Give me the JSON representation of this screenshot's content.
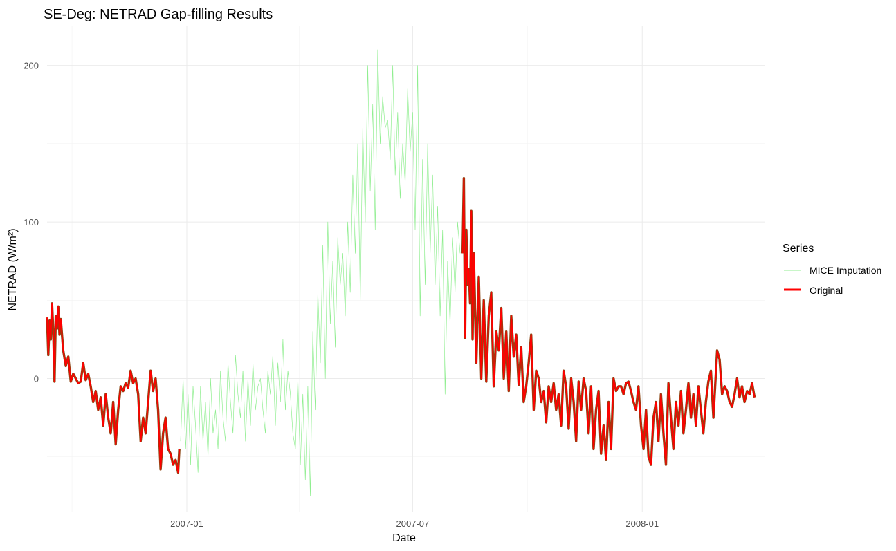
{
  "chart_data": {
    "type": "line",
    "title": "SE-Deg: NETRAD Gap-filling Results",
    "xlabel": "Date",
    "ylabel": "NETRAD (W/m²)",
    "x_range": [
      "2006-09-11",
      "2008-04-08"
    ],
    "ylim": [
      -85,
      225
    ],
    "x_ticks": [
      {
        "date": "2007-01-01",
        "label": "2007-01"
      },
      {
        "date": "2007-07-01",
        "label": "2007-07"
      },
      {
        "date": "2008-01-01",
        "label": "2008-01"
      }
    ],
    "x_minor_ticks": [
      "2006-10-01",
      "2007-04-01",
      "2007-10-01",
      "2008-04-01"
    ],
    "y_ticks": [
      0,
      100,
      200
    ],
    "y_minor_ticks": [
      -50,
      50,
      150
    ],
    "grid": true,
    "legend": {
      "title": "Series",
      "position": "right",
      "entries": [
        {
          "label": "MICE Imputation",
          "color": "#90EE90"
        },
        {
          "label": "Original",
          "color": "#FF0000"
        }
      ]
    },
    "series": [
      {
        "name": "MICE Imputation",
        "color": "#90EE90",
        "x": [
          "2006-12-27",
          "2006-12-29",
          "2006-12-31",
          "2007-01-02",
          "2007-01-04",
          "2007-01-06",
          "2007-01-08",
          "2007-01-10",
          "2007-01-12",
          "2007-01-14",
          "2007-01-16",
          "2007-01-18",
          "2007-01-20",
          "2007-01-22",
          "2007-01-24",
          "2007-01-26",
          "2007-01-28",
          "2007-01-30",
          "2007-02-01",
          "2007-02-03",
          "2007-02-05",
          "2007-02-07",
          "2007-02-09",
          "2007-02-11",
          "2007-02-13",
          "2007-02-15",
          "2007-02-17",
          "2007-02-19",
          "2007-02-21",
          "2007-02-23",
          "2007-02-25",
          "2007-02-27",
          "2007-03-01",
          "2007-03-03",
          "2007-03-05",
          "2007-03-07",
          "2007-03-09",
          "2007-03-11",
          "2007-03-13",
          "2007-03-15",
          "2007-03-17",
          "2007-03-19",
          "2007-03-21",
          "2007-03-23",
          "2007-03-25",
          "2007-03-27",
          "2007-03-29",
          "2007-03-31",
          "2007-04-02",
          "2007-04-04",
          "2007-04-06",
          "2007-04-08",
          "2007-04-10",
          "2007-04-12",
          "2007-04-14",
          "2007-04-16",
          "2007-04-18",
          "2007-04-20",
          "2007-04-22",
          "2007-04-24",
          "2007-04-26",
          "2007-04-28",
          "2007-04-30",
          "2007-05-02",
          "2007-05-04",
          "2007-05-06",
          "2007-05-08",
          "2007-05-10",
          "2007-05-12",
          "2007-05-14",
          "2007-05-16",
          "2007-05-18",
          "2007-05-20",
          "2007-05-22",
          "2007-05-24",
          "2007-05-26",
          "2007-05-28",
          "2007-05-30",
          "2007-06-01",
          "2007-06-03",
          "2007-06-05",
          "2007-06-07",
          "2007-06-09",
          "2007-06-11",
          "2007-06-13",
          "2007-06-15",
          "2007-06-17",
          "2007-06-19",
          "2007-06-21",
          "2007-06-23",
          "2007-06-25",
          "2007-06-27",
          "2007-06-29",
          "2007-07-01",
          "2007-07-03",
          "2007-07-05",
          "2007-07-07",
          "2007-07-09",
          "2007-07-11",
          "2007-07-13",
          "2007-07-15",
          "2007-07-17",
          "2007-07-19",
          "2007-07-21",
          "2007-07-23",
          "2007-07-25",
          "2007-07-27",
          "2007-07-29",
          "2007-07-31",
          "2007-08-02",
          "2007-08-04",
          "2007-08-06",
          "2007-08-08"
        ],
        "y": [
          -40,
          0,
          -45,
          -10,
          -55,
          -5,
          -30,
          -60,
          -5,
          -40,
          -15,
          -50,
          0,
          -35,
          -20,
          -45,
          5,
          -25,
          -40,
          10,
          -15,
          -35,
          15,
          -10,
          -25,
          5,
          -40,
          0,
          -30,
          10,
          -20,
          -5,
          0,
          -20,
          -35,
          5,
          -10,
          15,
          -30,
          10,
          -15,
          25,
          -20,
          5,
          -10,
          -35,
          -45,
          0,
          -55,
          -10,
          -65,
          -5,
          -75,
          30,
          -20,
          55,
          10,
          85,
          0,
          100,
          35,
          75,
          20,
          90,
          60,
          80,
          40,
          100,
          55,
          130,
          80,
          150,
          50,
          160,
          100,
          200,
          120,
          175,
          95,
          210,
          150,
          180,
          160,
          165,
          140,
          200,
          130,
          170,
          115,
          150,
          125,
          185,
          145,
          170,
          95,
          200,
          40,
          140,
          60,
          150,
          80,
          130,
          60,
          110,
          40,
          95,
          -10,
          75,
          35,
          90,
          55,
          100,
          80
        ],
        "stroke_width": 0.7
      },
      {
        "name": "Original",
        "color": "#FF0000",
        "outline": "#8B4513",
        "segments": [
          {
            "x": [
              "2006-09-11",
              "2006-09-12",
              "2006-09-13",
              "2006-09-14",
              "2006-09-15",
              "2006-09-16",
              "2006-09-17",
              "2006-09-18",
              "2006-09-19",
              "2006-09-20",
              "2006-09-21",
              "2006-09-22",
              "2006-09-24",
              "2006-09-26",
              "2006-09-28",
              "2006-09-30",
              "2006-10-02",
              "2006-10-04",
              "2006-10-06",
              "2006-10-08",
              "2006-10-10",
              "2006-10-12",
              "2006-10-14",
              "2006-10-16",
              "2006-10-18",
              "2006-10-20",
              "2006-10-22",
              "2006-10-24",
              "2006-10-26",
              "2006-10-28",
              "2006-10-30",
              "2006-11-01",
              "2006-11-03",
              "2006-11-05",
              "2006-11-07",
              "2006-11-09",
              "2006-11-11",
              "2006-11-13",
              "2006-11-15",
              "2006-11-17",
              "2006-11-19",
              "2006-11-21",
              "2006-11-23",
              "2006-11-25",
              "2006-11-27",
              "2006-11-29",
              "2006-12-01",
              "2006-12-03",
              "2006-12-05",
              "2006-12-07",
              "2006-12-09",
              "2006-12-11",
              "2006-12-13",
              "2006-12-15",
              "2006-12-17",
              "2006-12-19",
              "2006-12-21",
              "2006-12-23",
              "2006-12-25",
              "2006-12-26"
            ],
            "y": [
              39,
              15,
              37,
              25,
              48,
              30,
              -2,
              40,
              32,
              46,
              28,
              38,
              18,
              8,
              14,
              -2,
              3,
              0,
              -3,
              -2,
              10,
              -1,
              3,
              -5,
              -15,
              -8,
              -20,
              -12,
              -30,
              -10,
              -25,
              -35,
              -15,
              -42,
              -20,
              -5,
              -8,
              -3,
              -6,
              5,
              -3,
              0,
              -10,
              -40,
              -25,
              -35,
              -15,
              5,
              -8,
              0,
              -20,
              -58,
              -35,
              -25,
              -45,
              -48,
              -55,
              -52,
              -60,
              -45
            ]
          },
          {
            "x": [
              "2007-08-10",
              "2007-08-11",
              "2007-08-12",
              "2007-08-13",
              "2007-08-14",
              "2007-08-15",
              "2007-08-16",
              "2007-08-17",
              "2007-08-18",
              "2007-08-19",
              "2007-08-21",
              "2007-08-23",
              "2007-08-25",
              "2007-08-27",
              "2007-08-29",
              "2007-08-31",
              "2007-09-02",
              "2007-09-04",
              "2007-09-06",
              "2007-09-08",
              "2007-09-10",
              "2007-09-12",
              "2007-09-14",
              "2007-09-16",
              "2007-09-18",
              "2007-09-20",
              "2007-09-22",
              "2007-09-24",
              "2007-09-26",
              "2007-09-28",
              "2007-09-30",
              "2007-10-02",
              "2007-10-04",
              "2007-10-06",
              "2007-10-08",
              "2007-10-10",
              "2007-10-12",
              "2007-10-14",
              "2007-10-16",
              "2007-10-18",
              "2007-10-20",
              "2007-10-22",
              "2007-10-24",
              "2007-10-26",
              "2007-10-28",
              "2007-10-30",
              "2007-11-01",
              "2007-11-03",
              "2007-11-05",
              "2007-11-07",
              "2007-11-09",
              "2007-11-11",
              "2007-11-13",
              "2007-11-15",
              "2007-11-17",
              "2007-11-19",
              "2007-11-21",
              "2007-11-23",
              "2007-11-25",
              "2007-11-27",
              "2007-11-29",
              "2007-12-01",
              "2007-12-03",
              "2007-12-05",
              "2007-12-07",
              "2007-12-09",
              "2007-12-11",
              "2007-12-13",
              "2007-12-15",
              "2007-12-17",
              "2007-12-19",
              "2007-12-21",
              "2007-12-23",
              "2007-12-25",
              "2007-12-27",
              "2007-12-29",
              "2007-12-31",
              "2008-01-02",
              "2008-01-04",
              "2008-01-06",
              "2008-01-08",
              "2008-01-10",
              "2008-01-12",
              "2008-01-14",
              "2008-01-16",
              "2008-01-18",
              "2008-01-20",
              "2008-01-22",
              "2008-01-24",
              "2008-01-26",
              "2008-01-28",
              "2008-01-30",
              "2008-02-01",
              "2008-02-03",
              "2008-02-05",
              "2008-02-07",
              "2008-02-09",
              "2008-02-11",
              "2008-02-13",
              "2008-02-15",
              "2008-02-17",
              "2008-02-19",
              "2008-02-21",
              "2008-02-23",
              "2008-02-25",
              "2008-02-27",
              "2008-03-01",
              "2008-03-03",
              "2008-03-05",
              "2008-03-07",
              "2008-03-09",
              "2008-03-11",
              "2008-03-13",
              "2008-03-15",
              "2008-03-17",
              "2008-03-19",
              "2008-03-21",
              "2008-03-23",
              "2008-03-25",
              "2008-03-27",
              "2008-03-29",
              "2008-03-31"
            ],
            "y": [
              80,
              128,
              26,
              95,
              60,
              70,
              48,
              107,
              25,
              80,
              10,
              65,
              0,
              50,
              -2,
              40,
              55,
              -5,
              30,
              18,
              45,
              0,
              30,
              -8,
              40,
              14,
              28,
              -4,
              20,
              -15,
              -5,
              10,
              28,
              -20,
              5,
              0,
              -15,
              -8,
              -28,
              -5,
              -15,
              -3,
              -20,
              -10,
              -30,
              5,
              -5,
              -32,
              0,
              -15,
              -40,
              -2,
              -20,
              0,
              -8,
              -35,
              -5,
              -45,
              -20,
              -8,
              -48,
              -30,
              -52,
              -15,
              -45,
              0,
              -8,
              -5,
              -5,
              -10,
              -3,
              -2,
              -8,
              -15,
              -20,
              -5,
              -30,
              -45,
              -20,
              -50,
              -55,
              -25,
              -15,
              -40,
              -10,
              -35,
              -55,
              -3,
              -25,
              -45,
              -15,
              -30,
              -8,
              -35,
              -20,
              -3,
              -25,
              -10,
              -30,
              -5,
              -20,
              -35,
              -15,
              -2,
              5,
              -25,
              18,
              12,
              -10,
              -5,
              -8,
              -15,
              -18,
              -10,
              0,
              -12,
              -5,
              -15,
              -8,
              -10,
              -3,
              -12
            ]
          }
        ],
        "stroke_width": 2.6
      }
    ]
  }
}
